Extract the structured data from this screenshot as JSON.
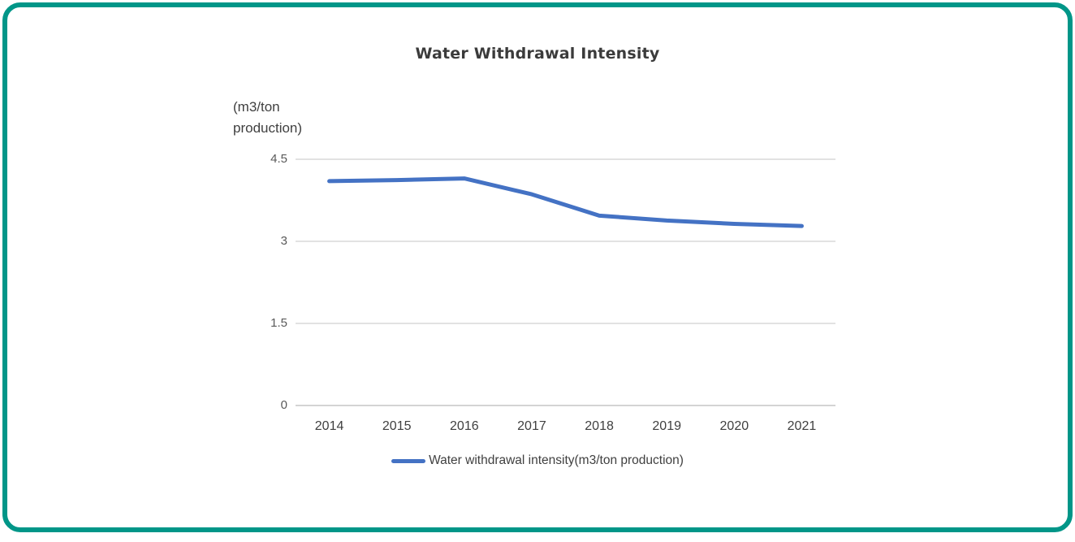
{
  "card": {
    "border_color": "#009688",
    "background": "#ffffff"
  },
  "chart_data": {
    "type": "line",
    "title": "Water Withdrawal Intensity",
    "y_axis_unit_label": "(m3/ton production)",
    "categories": [
      "2014",
      "2015",
      "2016",
      "2017",
      "2018",
      "2019",
      "2020",
      "2021"
    ],
    "series": [
      {
        "name": "Water withdrawal intensity(m3/ton production)",
        "color": "#4472c4",
        "values": [
          4.1,
          4.12,
          4.15,
          3.86,
          3.47,
          3.38,
          3.32,
          3.28
        ]
      }
    ],
    "yticks": [
      4.5,
      3,
      1.5,
      0
    ],
    "ytick_labels": [
      "4.5",
      "3",
      "1.5",
      "0"
    ],
    "ylim": [
      0,
      4.5
    ],
    "xlabel": "",
    "ylabel": "(m3/ton production)",
    "grid": true,
    "grid_color": "#d9d9d9",
    "axis_line_color": "#c6c6c6",
    "legend_position": "bottom"
  }
}
